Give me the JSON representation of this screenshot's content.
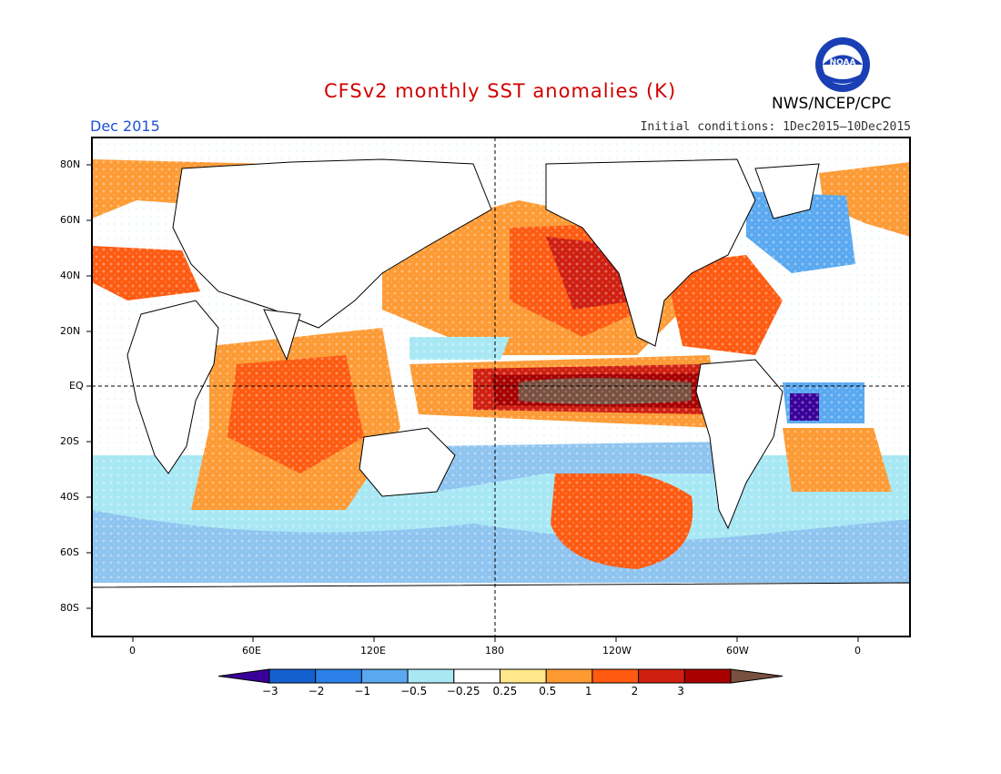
{
  "header": {
    "title": "CFSv2 monthly SST anomalies (K)",
    "agency": "NWS/NCEP/CPC",
    "month": "Dec 2015",
    "initial_conditions": "Initial conditions: 1Dec2015–10Dec2015",
    "logo_text": "NOAA"
  },
  "axes": {
    "lat_labels": [
      "80N",
      "60N",
      "40N",
      "20N",
      "EQ",
      "20S",
      "40S",
      "60S",
      "80S"
    ],
    "lon_labels": [
      "0",
      "60E",
      "120E",
      "180",
      "120W",
      "60W",
      "0"
    ]
  },
  "colorbar": {
    "levels": [
      "-3",
      "-2",
      "-1",
      "-0.5",
      "-0.25",
      "0.25",
      "0.5",
      "1",
      "2",
      "3"
    ],
    "colors": [
      "#3a009a",
      "#1560d0",
      "#2a80e6",
      "#5aa8f0",
      "#a8e8f4",
      "#ffffff",
      "#ffe78a",
      "#ff9a33",
      "#ff5a10",
      "#d01f10",
      "#a80000",
      "#7a5040"
    ]
  },
  "chart_data": {
    "type": "heatmap",
    "title": "CFSv2 monthly SST anomalies (K)",
    "variable": "SST anomaly",
    "units": "K",
    "month": "Dec 2015",
    "xlim": [
      -20,
      380
    ],
    "ylim": [
      -90,
      90
    ],
    "x_ticks": [
      "0",
      "60E",
      "120E",
      "180",
      "120W",
      "60W",
      "0"
    ],
    "y_ticks": [
      "80N",
      "60N",
      "40N",
      "20N",
      "EQ",
      "20S",
      "40S",
      "60S",
      "80S"
    ],
    "features": [
      {
        "region": "central-eastern equatorial Pacific",
        "anomaly": "> 3"
      },
      {
        "region": "NE Pacific",
        "anomaly": "1 to 2"
      },
      {
        "region": "North Atlantic subpolar",
        "anomaly": "-0.5 to -2"
      },
      {
        "region": "tropical South Atlantic off Brazil",
        "anomaly": "< -3"
      },
      {
        "region": "Indian Ocean",
        "anomaly": "0.5 to 2"
      },
      {
        "region": "South Pacific mid-latitudes",
        "anomaly": "1 to 2"
      },
      {
        "region": "Southern Ocean",
        "anomaly": "-0.25 to -1"
      }
    ]
  }
}
